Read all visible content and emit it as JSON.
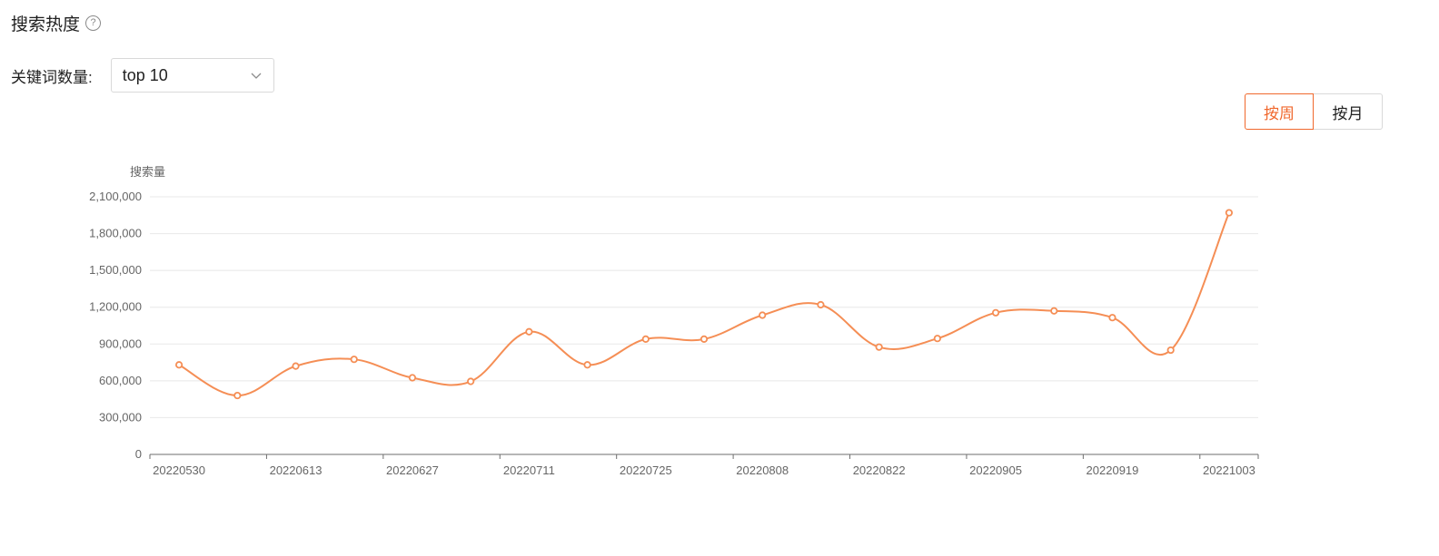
{
  "header": {
    "title": "搜索热度",
    "help_glyph": "?"
  },
  "filter": {
    "label": "关键词数量:",
    "selected": "top 10"
  },
  "toggle": {
    "week": "按周",
    "month": "按月",
    "active": "week"
  },
  "colors": {
    "accent": "#f0682d",
    "line": "#f58e55",
    "grid": "#e8e8e8",
    "axis": "#666666"
  },
  "chart_data": {
    "type": "line",
    "smooth": true,
    "ylabel": "搜索量",
    "ylim": [
      0,
      2100000
    ],
    "yticks": [
      0,
      300000,
      600000,
      900000,
      1200000,
      1500000,
      1800000,
      2100000
    ],
    "ytick_labels": [
      "0",
      "300,000",
      "600,000",
      "900,000",
      "1,200,000",
      "1,500,000",
      "1,800,000",
      "2,100,000"
    ],
    "x": [
      "20220530",
      "20220606",
      "20220613",
      "20220620",
      "20220627",
      "20220704",
      "20220711",
      "20220718",
      "20220725",
      "20220801",
      "20220808",
      "20220815",
      "20220822",
      "20220829",
      "20220905",
      "20220912",
      "20220919",
      "20220926",
      "20221003"
    ],
    "xtick_labels": [
      "20220530",
      "20220613",
      "20220627",
      "20220711",
      "20220725",
      "20220808",
      "20220822",
      "20220905",
      "20220919",
      "20221003"
    ],
    "series": [
      {
        "values": [
          730000,
          480000,
          720000,
          775000,
          625000,
          595000,
          1000000,
          730000,
          940000,
          940000,
          1135000,
          1220000,
          875000,
          945000,
          1155000,
          1170000,
          1115000,
          850000,
          1970000
        ]
      }
    ]
  }
}
